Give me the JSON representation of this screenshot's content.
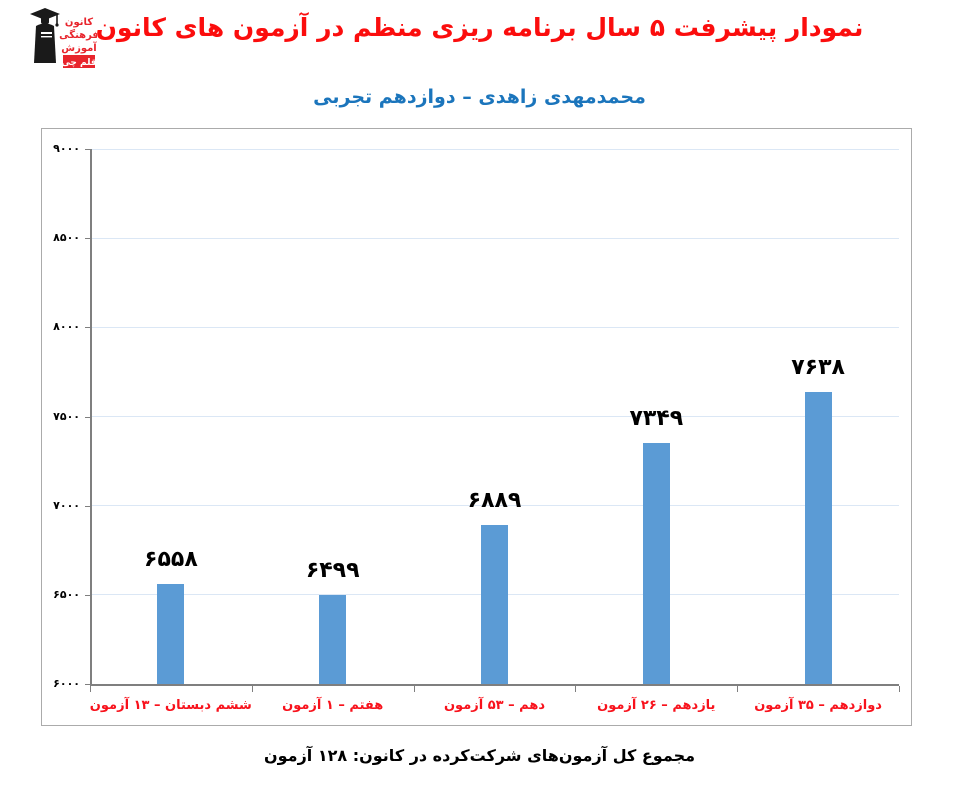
{
  "header": {
    "title": "نمودار پیشرفت ۵ سال برنامه ریزی منظم در آزمون های کانون",
    "subtitle": "محمدمهدی زاهدی – دوازدهم تجربی",
    "title_color": "#fb0d0d",
    "subtitle_color": "#1b75bc"
  },
  "logo": {
    "lines": [
      "کانون",
      "فرهنگی",
      "آموزش"
    ],
    "badge": "قلم چی",
    "red": "#e8242c",
    "black": "#1a1a1a"
  },
  "chart_data": {
    "type": "bar",
    "title": "نمودار پیشرفت ۵ سال برنامه ریزی منظم در آزمون های کانون",
    "categories": [
      "ششم دبستان – ۱۳ آزمون",
      "هفتم – ۱ آزمون",
      "دهم – ۵۳ آزمون",
      "یازدهم – ۲۶ آزمون",
      "دوازدهم – ۳۵ آزمون"
    ],
    "values": [
      6558,
      6499,
      6889,
      7349,
      7638
    ],
    "value_labels": [
      "۶۵۵۸",
      "۶۴۹۹",
      "۶۸۸۹",
      "۷۳۴۹",
      "۷۶۳۸"
    ],
    "xlabel": "",
    "ylabel": "",
    "ylim": [
      6000,
      9000
    ],
    "y_tick_step": 500,
    "y_tick_labels": [
      "۶۰۰۰",
      "۶۵۰۰",
      "۷۰۰۰",
      "۷۵۰۰",
      "۸۰۰۰",
      "۸۵۰۰",
      "۹۰۰۰"
    ],
    "grid": true,
    "legend": false,
    "bar_color": "#5b9bd5",
    "gridline_color": "#dbe7f5",
    "axis_color": "#7f7f7f",
    "category_label_color": "#f8121c",
    "value_label_color": "#000000"
  },
  "footer": {
    "caption": "مجموع کل آزمون‌های شرکت‌کرده در کانون: ۱۲۸ آزمون"
  }
}
